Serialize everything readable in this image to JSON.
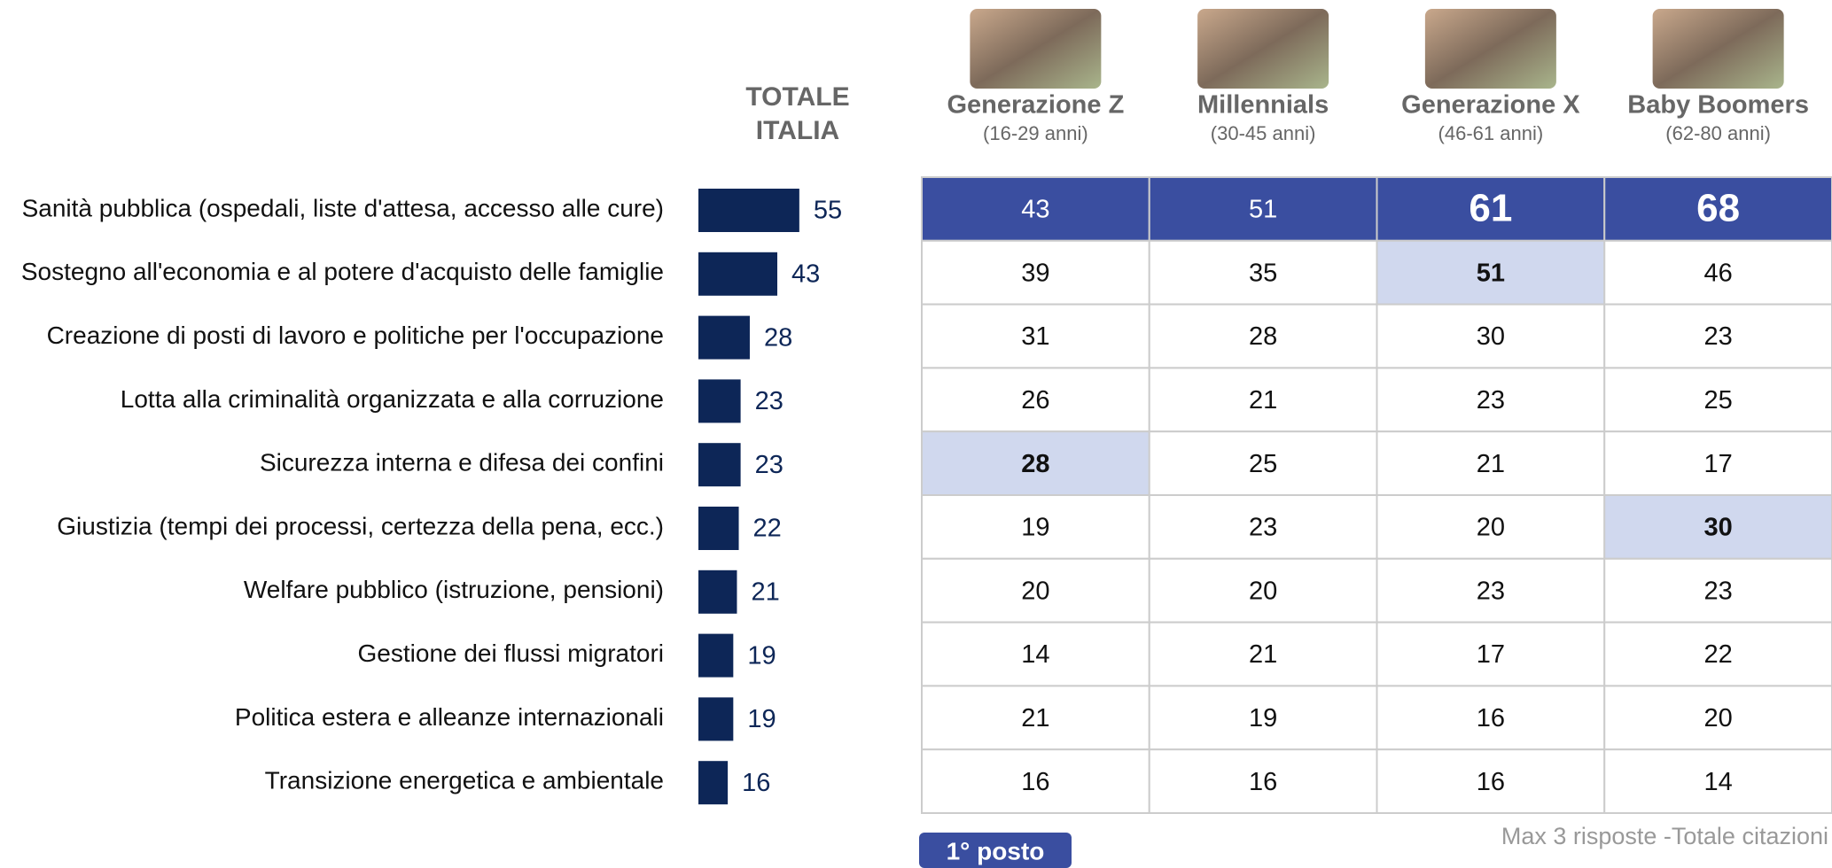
{
  "chart_data": {
    "type": "bar",
    "orientation": "horizontal",
    "title": "TOTALE ITALIA",
    "color": "#0d2657",
    "categories": [
      "Sanità pubblica (ospedali, liste d'attesa, accesso alle cure)",
      "Sostegno all'economia e al potere d'acquisto delle famiglie",
      "Creazione di posti di lavoro e politiche per l'occupazione",
      "Lotta alla criminalità organizzata e alla corruzione",
      "Sicurezza interna e difesa dei confini",
      "Giustizia (tempi dei processi, certezza della pena, ecc.)",
      "Welfare pubblico (istruzione, pensioni)",
      "Gestione dei flussi migratori",
      "Politica estera e alleanze internazionali",
      "Transizione energetica e ambientale"
    ],
    "values": [
      55,
      43,
      28,
      23,
      23,
      22,
      21,
      19,
      19,
      16
    ]
  },
  "table": {
    "columns": [
      {
        "name": "Generazione Z",
        "subtitle": "(16-29 anni)"
      },
      {
        "name": "Millennials",
        "subtitle": "(30-45 anni)"
      },
      {
        "name": "Generazione X",
        "subtitle": "(46-61 anni)"
      },
      {
        "name": "Baby Boomers",
        "subtitle": "(62-80 anni)"
      }
    ],
    "rows": [
      [
        43,
        51,
        61,
        68
      ],
      [
        39,
        35,
        51,
        46
      ],
      [
        31,
        28,
        30,
        23
      ],
      [
        26,
        21,
        23,
        25
      ],
      [
        28,
        25,
        21,
        17
      ],
      [
        19,
        23,
        20,
        30
      ],
      [
        20,
        20,
        23,
        23
      ],
      [
        14,
        21,
        17,
        22
      ],
      [
        21,
        19,
        16,
        20
      ],
      [
        16,
        16,
        16,
        14
      ]
    ],
    "top_row_color": "#3a4ea0",
    "highlight_color": "#d0d8ee",
    "emphasis": [
      [
        0,
        2
      ],
      [
        0,
        3
      ]
    ],
    "highlights": [
      [
        1,
        2
      ],
      [
        4,
        0
      ],
      [
        5,
        3
      ]
    ]
  },
  "legend": "1° posto",
  "note": "Max 3 risposte -Totale citazioni"
}
